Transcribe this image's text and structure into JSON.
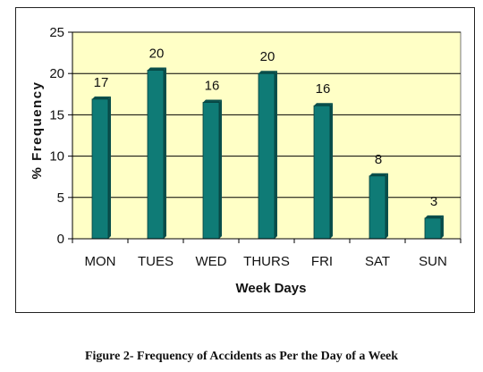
{
  "chart_data": {
    "type": "bar",
    "categories": [
      "MON",
      "TUES",
      "WED",
      "THURS",
      "FRI",
      "SAT",
      "SUN"
    ],
    "values": [
      16.9,
      20.4,
      16.5,
      20.0,
      16.1,
      7.6,
      2.5
    ],
    "data_labels": [
      "17",
      "20",
      "16",
      "20",
      "16",
      "8",
      "3"
    ],
    "title": "",
    "xlabel": "Week Days",
    "ylabel": "% Frequency",
    "ylim": [
      0,
      25
    ],
    "yticks": [
      0,
      5,
      10,
      15,
      20,
      25
    ],
    "grid": true,
    "colors": {
      "bar_fill": "#0f7b76",
      "bar_side": "#0a4f4c",
      "plot_bg": "#ffffc6",
      "gridline": "#000000"
    }
  },
  "caption": "Figure 2- Frequency of Accidents as Per the Day of a Week"
}
